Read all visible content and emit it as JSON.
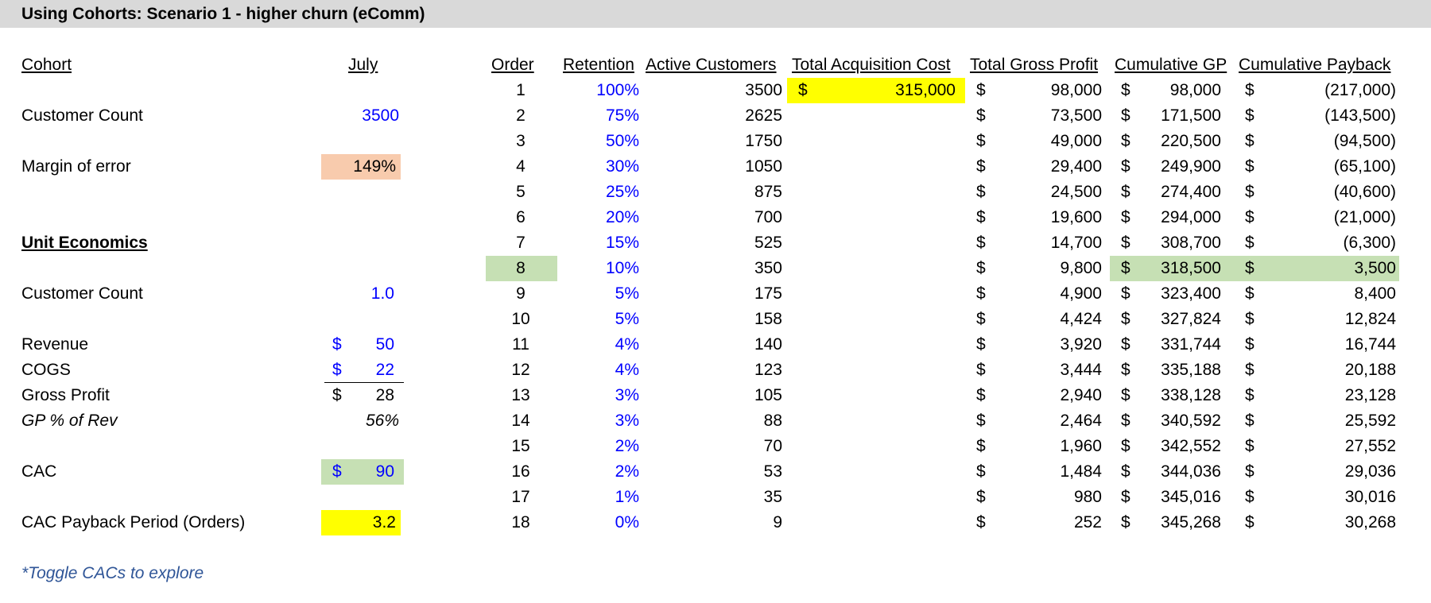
{
  "title": "Using Cohorts: Scenario 1 - higher churn (eComm)",
  "left": {
    "cohort_label": "Cohort",
    "cohort_value": "July",
    "customer_count_label": "Customer Count",
    "customer_count_value": "3500",
    "margin_label": "Margin of error",
    "margin_value": "149%",
    "unit_econ_label": "Unit Economics",
    "unit_count_label": "Customer Count",
    "unit_count_value": "1.0",
    "revenue_label": "Revenue",
    "revenue_cur": "$",
    "revenue_value": "50",
    "cogs_label": "COGS",
    "cogs_cur": "$",
    "cogs_value": "22",
    "gp_label": "Gross Profit",
    "gp_cur": "$",
    "gp_value": "28",
    "gp_pct_label": "GP % of Rev",
    "gp_pct_value": "56%",
    "cac_label": "CAC",
    "cac_cur": "$",
    "cac_value": "90",
    "payback_label": "CAC Payback Period (Orders)",
    "payback_value": "3.2",
    "note": "*Toggle CACs to explore"
  },
  "table": {
    "headers": {
      "order": "Order",
      "retention": "Retention",
      "active": "Active Customers",
      "acq_cost": "Total Acquisition Cost",
      "gross_profit": "Total Gross Profit",
      "cum_gp": "Cumulative GP",
      "cum_payback": "Cumulative Payback"
    },
    "currency": "$",
    "acq_cost_value": "315,000",
    "rows": [
      {
        "order": "1",
        "retention": "100%",
        "active": "3500",
        "gp": "98,000",
        "cum_gp": "98,000",
        "payback": "(217,000)"
      },
      {
        "order": "2",
        "retention": "75%",
        "active": "2625",
        "gp": "73,500",
        "cum_gp": "171,500",
        "payback": "(143,500)"
      },
      {
        "order": "3",
        "retention": "50%",
        "active": "1750",
        "gp": "49,000",
        "cum_gp": "220,500",
        "payback": "(94,500)"
      },
      {
        "order": "4",
        "retention": "30%",
        "active": "1050",
        "gp": "29,400",
        "cum_gp": "249,900",
        "payback": "(65,100)"
      },
      {
        "order": "5",
        "retention": "25%",
        "active": "875",
        "gp": "24,500",
        "cum_gp": "274,400",
        "payback": "(40,600)"
      },
      {
        "order": "6",
        "retention": "20%",
        "active": "700",
        "gp": "19,600",
        "cum_gp": "294,000",
        "payback": "(21,000)"
      },
      {
        "order": "7",
        "retention": "15%",
        "active": "525",
        "gp": "14,700",
        "cum_gp": "308,700",
        "payback": "(6,300)"
      },
      {
        "order": "8",
        "retention": "10%",
        "active": "350",
        "gp": "9,800",
        "cum_gp": "318,500",
        "payback": "3,500"
      },
      {
        "order": "9",
        "retention": "5%",
        "active": "175",
        "gp": "4,900",
        "cum_gp": "323,400",
        "payback": "8,400"
      },
      {
        "order": "10",
        "retention": "5%",
        "active": "158",
        "gp": "4,424",
        "cum_gp": "327,824",
        "payback": "12,824"
      },
      {
        "order": "11",
        "retention": "4%",
        "active": "140",
        "gp": "3,920",
        "cum_gp": "331,744",
        "payback": "16,744"
      },
      {
        "order": "12",
        "retention": "4%",
        "active": "123",
        "gp": "3,444",
        "cum_gp": "335,188",
        "payback": "20,188"
      },
      {
        "order": "13",
        "retention": "3%",
        "active": "105",
        "gp": "2,940",
        "cum_gp": "338,128",
        "payback": "23,128"
      },
      {
        "order": "14",
        "retention": "3%",
        "active": "88",
        "gp": "2,464",
        "cum_gp": "340,592",
        "payback": "25,592"
      },
      {
        "order": "15",
        "retention": "2%",
        "active": "70",
        "gp": "1,960",
        "cum_gp": "342,552",
        "payback": "27,552"
      },
      {
        "order": "16",
        "retention": "2%",
        "active": "53",
        "gp": "1,484",
        "cum_gp": "344,036",
        "payback": "29,036"
      },
      {
        "order": "17",
        "retention": "1%",
        "active": "35",
        "gp": "980",
        "cum_gp": "345,016",
        "payback": "30,016"
      },
      {
        "order": "18",
        "retention": "0%",
        "active": "9",
        "gp": "252",
        "cum_gp": "345,268",
        "payback": "30,268"
      }
    ],
    "highlight_order": "8"
  },
  "colors": {
    "title_bg": "#d9d9d9",
    "input_blue": "#0000ff",
    "highlight_yellow": "#ffff00",
    "highlight_green": "#c6e0b4",
    "highlight_peach": "#f8cbad",
    "note_blue": "#2f5597"
  }
}
